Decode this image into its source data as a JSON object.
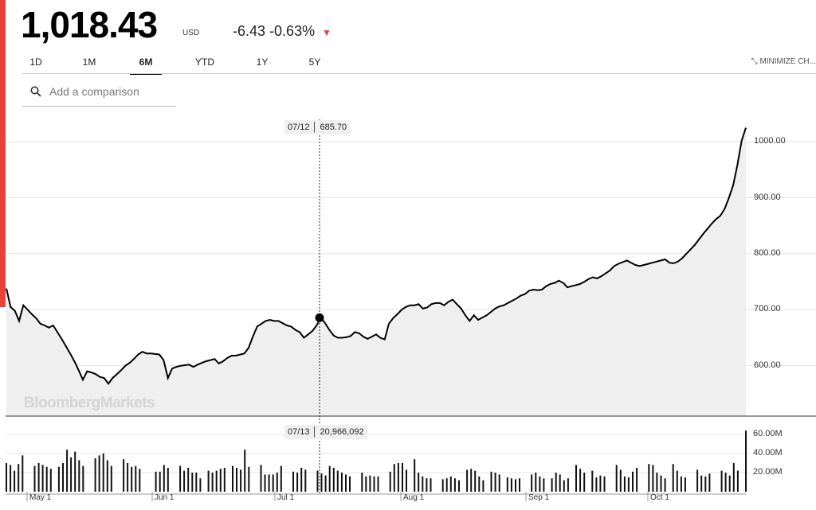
{
  "quote": {
    "price": "1,018.43",
    "currency": "USD",
    "change": "-6.43",
    "change_pct": "-0.63%",
    "direction_icon": "down-triangle-icon"
  },
  "tabs": [
    {
      "label": "1D",
      "active": false
    },
    {
      "label": "1M",
      "active": false
    },
    {
      "label": "6M",
      "active": true
    },
    {
      "label": "YTD",
      "active": false
    },
    {
      "label": "1Y",
      "active": false
    },
    {
      "label": "5Y",
      "active": false
    }
  ],
  "minimize_label": "MINIMIZE CH...",
  "search": {
    "placeholder": "Add a comparison"
  },
  "watermark": "BloombergMarkets",
  "colors": {
    "accent_red": "#e8413a",
    "line": "#000000",
    "fill": "#efefef",
    "volume": "#111111"
  },
  "crosshair": {
    "price_date": "07/12",
    "price_value": "685.70",
    "volume_date": "07/13",
    "volume_value": "20,966,092"
  },
  "chart_data": {
    "type": "line",
    "price": {
      "ylim": [
        510,
        1050
      ],
      "y_ticks": [
        "600.00",
        "700.00",
        "800.00",
        "900.00",
        "1000.00"
      ],
      "values": [
        738,
        705,
        698,
        680,
        708,
        700,
        692,
        685,
        675,
        672,
        668,
        672,
        660,
        648,
        635,
        622,
        608,
        592,
        575,
        590,
        588,
        585,
        580,
        578,
        568,
        578,
        585,
        592,
        600,
        605,
        612,
        620,
        625,
        622,
        622,
        621,
        620,
        610,
        578,
        595,
        598,
        600,
        601,
        602,
        598,
        602,
        605,
        608,
        610,
        612,
        604,
        608,
        614,
        618,
        618,
        620,
        622,
        632,
        652,
        670,
        675,
        680,
        682,
        680,
        680,
        676,
        672,
        670,
        664,
        660,
        650,
        656,
        662,
        672,
        686,
        676,
        664,
        654,
        650,
        650,
        651,
        653,
        660,
        658,
        652,
        648,
        652,
        656,
        650,
        647,
        675,
        685,
        692,
        700,
        705,
        708,
        708,
        710,
        702,
        704,
        710,
        712,
        712,
        708,
        714,
        718,
        710,
        702,
        690,
        680,
        690,
        682,
        686,
        690,
        696,
        702,
        706,
        708,
        712,
        716,
        720,
        725,
        728,
        734,
        736,
        735,
        736,
        742,
        746,
        748,
        752,
        748,
        740,
        742,
        744,
        746,
        750,
        755,
        758,
        756,
        760,
        765,
        770,
        778,
        782,
        785,
        788,
        784,
        780,
        778,
        780,
        782,
        784,
        786,
        788,
        790,
        784,
        783,
        786,
        792,
        800,
        808,
        816,
        826,
        836,
        845,
        854,
        862,
        868,
        880,
        900,
        922,
        958,
        1002,
        1025
      ]
    },
    "volume": {
      "ylim": [
        0,
        65
      ],
      "y_ticks": [
        "20.00M",
        "40.00M",
        "60.00M"
      ],
      "values": [
        30,
        28,
        22,
        29,
        38,
        0,
        0,
        27,
        30,
        28,
        26,
        24,
        0,
        26,
        30,
        44,
        36,
        42,
        33,
        27,
        0,
        0,
        35,
        38,
        40,
        33,
        27,
        0,
        0,
        34,
        30,
        26,
        27,
        24,
        0,
        0,
        0,
        21,
        21,
        28,
        25,
        0,
        0,
        27,
        22,
        25,
        20,
        20,
        14,
        0,
        22,
        20,
        22,
        24,
        25,
        0,
        27,
        25,
        23,
        44,
        26,
        0,
        0,
        28,
        18,
        18,
        18,
        20,
        27,
        0,
        0,
        21,
        20,
        25,
        23,
        0,
        0,
        22,
        19,
        17,
        27,
        25,
        22,
        20,
        18,
        16,
        0,
        0,
        20,
        16,
        17,
        16,
        16,
        0,
        0,
        21,
        29,
        30,
        30,
        23,
        0,
        34,
        20,
        16,
        14,
        14,
        0,
        0,
        13,
        14,
        16,
        14,
        12,
        0,
        23,
        24,
        22,
        16,
        12,
        0,
        21,
        20,
        18,
        0,
        15,
        14,
        13,
        14,
        0,
        0,
        18,
        20,
        16,
        14,
        0,
        14,
        20,
        18,
        12,
        14,
        0,
        28,
        24,
        20,
        0,
        22,
        15,
        17,
        16,
        0,
        0,
        28,
        23,
        16,
        15,
        21,
        25,
        0,
        0,
        29,
        28,
        20,
        17,
        14,
        0,
        29,
        22,
        16,
        15,
        0,
        0,
        23,
        17,
        16,
        19,
        0,
        0,
        22,
        20,
        17,
        30,
        22,
        0,
        64
      ]
    },
    "x_labels": [
      "May 1",
      "Jun 1",
      "Jul 1",
      "Aug 1",
      "Sep 1",
      "Oct 1"
    ],
    "grid": true
  }
}
